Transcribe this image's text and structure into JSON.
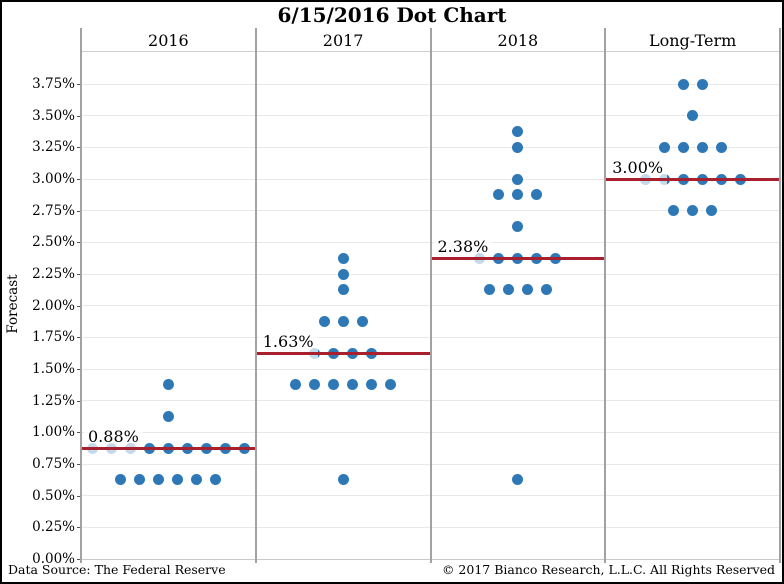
{
  "title": "6/15/2016 Dot Chart",
  "y_axis": {
    "label": "Forecast",
    "tick_labels": [
      "0.00%",
      "0.25%",
      "0.50%",
      "0.75%",
      "1.00%",
      "1.25%",
      "1.50%",
      "1.75%",
      "2.00%",
      "2.25%",
      "2.50%",
      "2.75%",
      "3.00%",
      "3.25%",
      "3.50%",
      "3.75%"
    ]
  },
  "footer": {
    "source": "Data Source: The Federal Reserve",
    "copyright": "© 2017 Bianco Research, L.L.C. All Rights Reserved"
  },
  "colors": {
    "dot": "#2E79B5",
    "median": "#A8202E",
    "grid": "#E8E8E8",
    "baseline": "#C9C9C9",
    "separator": "#A2A2A2",
    "tick": "#555555"
  },
  "chart_data": {
    "type": "scatter",
    "title": "6/15/2016 Dot Chart",
    "ylabel": "Forecast",
    "ylim": [
      0,
      3.75
    ],
    "ytick_step": 0.25,
    "grid": "horizontal-light-gray",
    "legend": "none",
    "description": "FOMC dot plot: each dot is one participant's rate forecast; dark red line marks the median for each horizon panel.",
    "panels": [
      {
        "label": "2016",
        "median": 0.875,
        "median_label": "0.88%",
        "dots": [
          {
            "value": 0.625,
            "count": 6
          },
          {
            "value": 0.875,
            "count": 9
          },
          {
            "value": 1.125,
            "count": 1
          },
          {
            "value": 1.375,
            "count": 1
          }
        ]
      },
      {
        "label": "2017",
        "median": 1.625,
        "median_label": "1.63%",
        "dots": [
          {
            "value": 0.625,
            "count": 1
          },
          {
            "value": 1.375,
            "count": 6
          },
          {
            "value": 1.625,
            "count": 4
          },
          {
            "value": 1.875,
            "count": 3
          },
          {
            "value": 2.125,
            "count": 1
          },
          {
            "value": 2.25,
            "count": 1
          },
          {
            "value": 2.375,
            "count": 1
          }
        ]
      },
      {
        "label": "2018",
        "median": 2.375,
        "median_label": "2.38%",
        "dots": [
          {
            "value": 0.625,
            "count": 1
          },
          {
            "value": 2.125,
            "count": 4
          },
          {
            "value": 2.375,
            "count": 5
          },
          {
            "value": 2.625,
            "count": 1
          },
          {
            "value": 2.875,
            "count": 3
          },
          {
            "value": 3.0,
            "count": 1
          },
          {
            "value": 3.25,
            "count": 1
          },
          {
            "value": 3.375,
            "count": 1
          }
        ]
      },
      {
        "label": "Long-Term",
        "median": 3.0,
        "median_label": "3.00%",
        "dots": [
          {
            "value": 2.75,
            "count": 3
          },
          {
            "value": 3.0,
            "count": 6
          },
          {
            "value": 3.25,
            "count": 4
          },
          {
            "value": 3.5,
            "count": 1
          },
          {
            "value": 3.75,
            "count": 2
          }
        ]
      }
    ]
  }
}
